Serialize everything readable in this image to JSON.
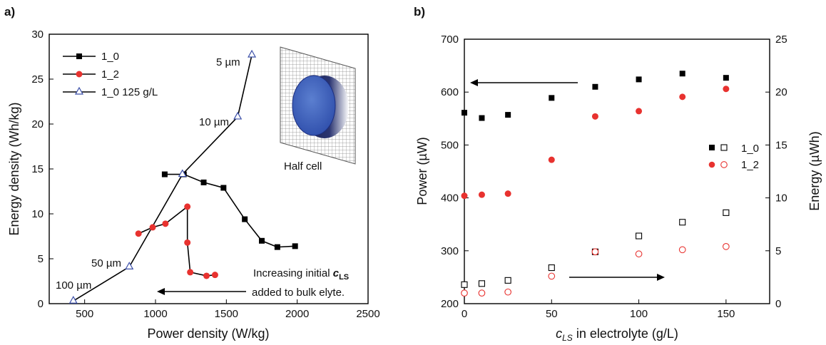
{
  "chart_data": [
    {
      "panel_label": "a)",
      "type": "line",
      "xlabel": "Power density (W/kg)",
      "ylabel": "Energy density (Wh/kg)",
      "xlim": [
        250,
        2500
      ],
      "ylim": [
        0,
        30
      ],
      "xticks": [
        500,
        1000,
        1500,
        2000,
        2500
      ],
      "yticks": [
        0,
        5,
        10,
        15,
        20,
        25,
        30
      ],
      "grid": false,
      "legend_position": "top-left",
      "series": [
        {
          "name": "1_0",
          "marker": "square",
          "color": "#000000",
          "points": [
            [
              1065,
              14.4
            ],
            [
              1200,
              14.4
            ],
            [
              1340,
              13.5
            ],
            [
              1480,
              12.9
            ],
            [
              1630,
              9.4
            ],
            [
              1750,
              7.0
            ],
            [
              1860,
              6.3
            ],
            [
              1985,
              6.4
            ]
          ]
        },
        {
          "name": "1_2",
          "marker": "circle",
          "color": "#e8322f",
          "points": [
            [
              880,
              7.8
            ],
            [
              980,
              8.5
            ],
            [
              1070,
              8.9
            ],
            [
              1225,
              10.8
            ],
            [
              1225,
              6.8
            ],
            [
              1245,
              3.5
            ],
            [
              1360,
              3.1
            ],
            [
              1420,
              3.2
            ]
          ]
        },
        {
          "name": "1_0 125 g/L",
          "marker": "triangle-open",
          "color": "#3b4fa8",
          "points": [
            [
              420,
              0.3
            ],
            [
              815,
              4.1
            ],
            [
              1190,
              14.4
            ],
            [
              1580,
              20.8
            ],
            [
              1680,
              27.7
            ]
          ]
        }
      ],
      "annotations": [
        {
          "text": "5 µm"
        },
        {
          "text": "10 µm"
        },
        {
          "text": "50 µm"
        },
        {
          "text": "100 µm"
        },
        {
          "text": "Half cell"
        }
      ],
      "arrow_note": {
        "line1_prefix": "Increasing initial ",
        "symbol": "c",
        "subscript": "LS",
        "line2": "added to bulk elyte."
      }
    },
    {
      "panel_label": "b)",
      "type": "scatter",
      "xlabel_symbol": "c",
      "xlabel_subscript": "LS",
      "xlabel_rest": " in electrolyte (g/L)",
      "ylabel": "Power (µW)",
      "y2label": "Energy (µWh)",
      "xlim": [
        0,
        175
      ],
      "ylim": [
        200,
        700
      ],
      "y2lim": [
        0,
        25
      ],
      "xticks": [
        0,
        50,
        100,
        150
      ],
      "yticks": [
        200,
        300,
        400,
        500,
        600,
        700
      ],
      "y2ticks": [
        0,
        5,
        10,
        15,
        20,
        25
      ],
      "grid": false,
      "legend_position": "center-right",
      "x": [
        0,
        10,
        25,
        50,
        75,
        100,
        125,
        150
      ],
      "series": [
        {
          "name": "1_0",
          "axis": "power",
          "marker": "square",
          "color": "#000000",
          "values": [
            561,
            551,
            557,
            589,
            610,
            624,
            635,
            627
          ]
        },
        {
          "name": "1_2",
          "axis": "power",
          "marker": "circle",
          "color": "#e8322f",
          "values": [
            404,
            406,
            408,
            472,
            554,
            564,
            591,
            606
          ]
        },
        {
          "name": "1_0",
          "axis": "energy",
          "marker": "square-open",
          "color": "#000000",
          "values": [
            1.8,
            1.9,
            2.2,
            3.4,
            4.9,
            6.4,
            7.7,
            8.6
          ]
        },
        {
          "name": "1_2",
          "axis": "energy",
          "marker": "circle-open",
          "color": "#e8322f",
          "values": [
            1.0,
            1.0,
            1.1,
            2.6,
            4.9,
            4.7,
            5.1,
            5.4
          ]
        }
      ],
      "legend": [
        {
          "label": "1_0"
        },
        {
          "label": "1_2"
        }
      ]
    }
  ]
}
